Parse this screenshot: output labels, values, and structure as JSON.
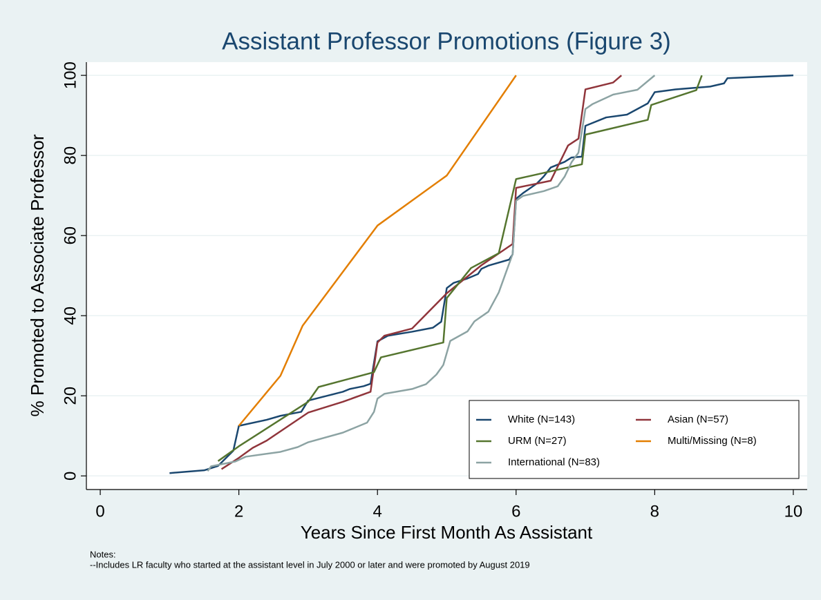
{
  "chart_data": {
    "type": "line",
    "title": "Assistant Professor Promotions (Figure 3)",
    "xlabel": "Years Since First Month As Assistant",
    "ylabel": "% Promoted to Associate Professor",
    "xlim": [
      -0.2,
      10.2
    ],
    "ylim": [
      -3.4,
      103.3
    ],
    "xticks": [
      0,
      2,
      4,
      6,
      8,
      10
    ],
    "yticks": [
      0,
      20,
      40,
      60,
      80,
      100
    ],
    "grid": true,
    "legend": "bottom right",
    "notes": [
      "Notes:",
      "--Includes LR faculty who started at the assistant level in July 2000 or later and were promoted by August 2019"
    ],
    "series": [
      {
        "name": "White (N=143)",
        "color": "#1a476f",
        "x": [
          1.0,
          1.5,
          1.7,
          1.92,
          2.0,
          2.4,
          2.6,
          2.9,
          3.0,
          3.5,
          3.6,
          3.8,
          3.9,
          4.0,
          4.15,
          4.5,
          4.8,
          4.92,
          5.0,
          5.1,
          5.3,
          5.45,
          5.5,
          5.6,
          5.9,
          5.95,
          6.0,
          6.1,
          6.3,
          6.4,
          6.5,
          6.7,
          6.8,
          6.95,
          7.0,
          7.3,
          7.6,
          7.9,
          8.0,
          8.3,
          8.8,
          9.0,
          9.05,
          10.0
        ],
        "values": [
          0.7,
          1.4,
          2.5,
          6.3,
          12.5,
          14,
          15,
          16,
          18.8,
          21,
          21.7,
          22.4,
          23,
          33.6,
          35,
          36,
          37,
          38.5,
          46.9,
          48.2,
          49.3,
          50.4,
          51.7,
          52.5,
          54,
          55.3,
          69.2,
          70.6,
          73,
          74.8,
          77,
          78.4,
          79.5,
          79.7,
          87.4,
          89.5,
          90.2,
          93,
          95.8,
          96.5,
          97.2,
          98,
          99.3,
          100
        ]
      },
      {
        "name": "Asian (N=57)",
        "color": "#90353b",
        "x": [
          1.75,
          2.0,
          2.2,
          2.4,
          3.0,
          3.5,
          3.9,
          4.0,
          4.1,
          4.5,
          5.0,
          5.5,
          5.95,
          6.0,
          6.5,
          6.75,
          6.9,
          7.0,
          7.4,
          7.52
        ],
        "values": [
          1.7,
          4.5,
          7,
          8.8,
          15.8,
          18.5,
          21,
          33.3,
          35,
          36.8,
          45.6,
          52.6,
          57.9,
          71.9,
          73.7,
          82.5,
          84.2,
          96.5,
          98.2,
          100
        ]
      },
      {
        "name": "URM (N=27)",
        "color": "#55752f",
        "x": [
          1.7,
          2.0,
          3.0,
          3.15,
          3.95,
          4.05,
          4.95,
          5.0,
          5.35,
          5.75,
          6.0,
          6.95,
          7.0,
          7.9,
          7.95,
          8.6,
          8.68
        ],
        "values": [
          3.7,
          7.4,
          18.5,
          22.2,
          25.9,
          29.6,
          33.3,
          44.4,
          51.9,
          55.6,
          74.1,
          77.8,
          85.2,
          88.9,
          92.6,
          96.3,
          100
        ]
      },
      {
        "name": "Multi/Missing (N=8)",
        "color": "#e37e00",
        "x": [
          2.0,
          2.6,
          2.92,
          4.0,
          5.0,
          6.0
        ],
        "values": [
          12.5,
          25,
          37.5,
          62.5,
          75,
          100
        ]
      },
      {
        "name": "International (N=83)",
        "color": "#8ca3a3",
        "x": [
          1.55,
          1.6,
          1.95,
          2.1,
          2.6,
          2.85,
          3.0,
          3.5,
          3.85,
          3.95,
          4.0,
          4.1,
          4.5,
          4.7,
          4.85,
          4.95,
          5.05,
          5.3,
          5.4,
          5.6,
          5.75,
          5.85,
          5.95,
          6.0,
          6.1,
          6.4,
          6.6,
          6.7,
          6.8,
          6.9,
          7.0,
          7.1,
          7.4,
          7.75,
          8.0
        ],
        "values": [
          1.2,
          2.4,
          3.6,
          4.8,
          6,
          7.2,
          8.4,
          10.8,
          13.3,
          16,
          19.3,
          20.5,
          21.7,
          22.9,
          25.3,
          27.7,
          33.7,
          36.1,
          38.6,
          41,
          45.8,
          50.6,
          55.4,
          68.7,
          69.9,
          71.1,
          72.3,
          74.7,
          78.3,
          80.7,
          91.6,
          92.8,
          95.2,
          96.4,
          100
        ]
      }
    ]
  }
}
